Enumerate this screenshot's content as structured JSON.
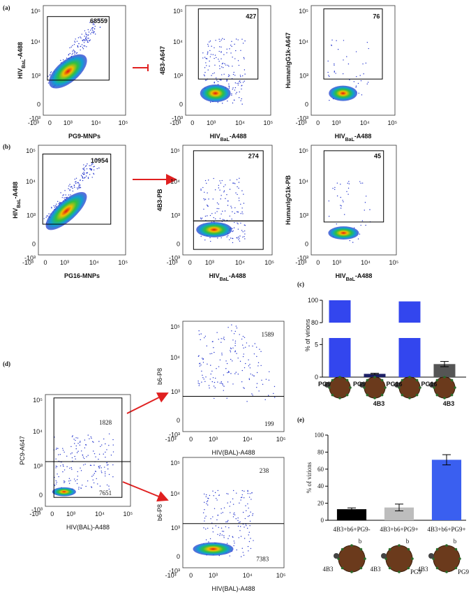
{
  "panel_labels": [
    "(a)",
    "(b)",
    "(c)",
    "(d)",
    "(e)"
  ],
  "flow_axis_ticks": [
    "-10³",
    "0",
    "10³",
    "10⁴",
    "10⁵"
  ],
  "flow_plots": [
    {
      "x_label": "PG9-MNPs",
      "y_label": [
        {
          "text": "HIV"
        },
        {
          "text": "BaL",
          "sub": true
        },
        {
          "text": "-A488"
        }
      ],
      "counts": [
        68559
      ]
    },
    {
      "x_label": [
        {
          "text": "HIV"
        },
        {
          "text": "BaL",
          "sub": true
        },
        {
          "text": "-A488"
        }
      ],
      "y_label": "4B3-A647",
      "counts": [
        427
      ]
    },
    {
      "x_label": [
        {
          "text": "HIV"
        },
        {
          "text": "BaL",
          "sub": true
        },
        {
          "text": "-A488"
        }
      ],
      "y_label": "HumanIgG1k-A647",
      "counts": [
        76
      ]
    },
    {
      "x_label": "PG16-MNPs",
      "y_label": [
        {
          "text": "HIV"
        },
        {
          "text": "BaL",
          "sub": true
        },
        {
          "text": "-A488"
        }
      ],
      "counts": [
        10954
      ]
    },
    {
      "x_label": [
        {
          "text": "HIV"
        },
        {
          "text": "BaL",
          "sub": true
        },
        {
          "text": "-A488"
        }
      ],
      "y_label": "4B3-PB",
      "counts": [
        274
      ]
    },
    {
      "x_label": [
        {
          "text": "HIV"
        },
        {
          "text": "BaL",
          "sub": true
        },
        {
          "text": "-A488"
        }
      ],
      "y_label": "HumanIgG1k-PB",
      "counts": [
        45
      ]
    },
    {
      "x_label": "HIV(BAL)-A488",
      "y_label": "PC9-A647",
      "counts": [
        1828,
        7651
      ]
    },
    {
      "x_label": "HIV(BAL)-A488",
      "y_label": "b6-P8",
      "counts": [
        1589,
        199
      ]
    },
    {
      "x_label": "HIV(BAL)-A488",
      "y_label": "b6-P8",
      "counts": [
        238,
        7383
      ]
    }
  ],
  "chart_data": [
    {
      "type": "bar",
      "y_label": "% of virions",
      "categories": [
        null,
        null,
        null,
        null
      ],
      "values": [
        100,
        0.5,
        99,
        2
      ],
      "errors": [
        null,
        0.1,
        null,
        0.4
      ],
      "colors": [
        "#3346ee",
        "#1c1f66",
        "#3346ee",
        "#555555"
      ],
      "ylim": [
        [
          0,
          6
        ],
        [
          80,
          100
        ]
      ],
      "yticks": [
        0,
        5,
        80,
        100
      ],
      "icon_labels": [
        [
          "PG9"
        ],
        [
          "PG9",
          "4B3"
        ],
        [
          "PG16"
        ],
        [
          "PG16",
          "4B3"
        ]
      ]
    },
    {
      "type": "bar",
      "y_label": "% of virions",
      "categories": [
        "4B3+b6+PG9-",
        "4B3+b6+PG9+",
        "4B3+b6+PG9+"
      ],
      "values": [
        13,
        15,
        71
      ],
      "errors": [
        1.5,
        4,
        6
      ],
      "colors": [
        "#000000",
        "#bdbdbd",
        "#3a5ff0"
      ],
      "ylim": [
        0,
        100
      ],
      "yticks": [
        0,
        20,
        40,
        60,
        80,
        100
      ],
      "icon_labels": [
        [
          "4B3",
          "b"
        ],
        [
          "4B3",
          "b",
          "PG9"
        ],
        [
          "4B3",
          "b",
          "PG9"
        ]
      ]
    }
  ]
}
